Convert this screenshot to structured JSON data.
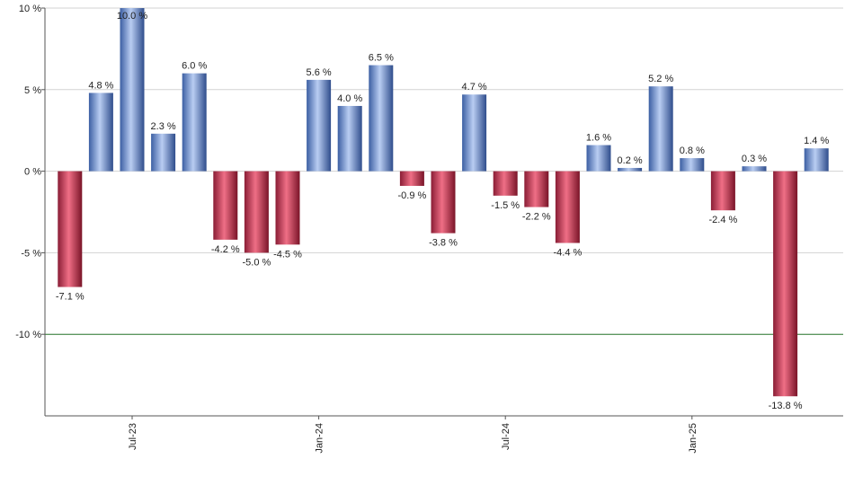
{
  "chart_data": {
    "type": "bar",
    "title": "",
    "xlabel": "",
    "ylabel": "",
    "ylim": [
      -15,
      10
    ],
    "y_ticks": [
      10,
      5,
      0,
      -5,
      -10
    ],
    "y_tick_labels": [
      "10 %",
      "5 %",
      "0 %",
      "-5 %",
      "-10 %"
    ],
    "grid": true,
    "reference_line": {
      "value": -10,
      "color": "#2e7d32"
    },
    "colors": {
      "positive": "#6f93d6",
      "negative": "#c8334f"
    },
    "x_ticks": [
      {
        "label": "Jul-23",
        "index": 2
      },
      {
        "label": "Jan-24",
        "index": 8
      },
      {
        "label": "Jul-24",
        "index": 14
      },
      {
        "label": "Jan-25",
        "index": 20
      }
    ],
    "values": [
      -7.1,
      4.8,
      10.0,
      2.3,
      6.0,
      -4.2,
      -5.0,
      -4.5,
      5.6,
      4.0,
      6.5,
      -0.9,
      -3.8,
      4.7,
      -1.5,
      -2.2,
      -4.4,
      1.6,
      0.2,
      5.2,
      0.8,
      -2.4,
      0.3,
      -13.8,
      1.4
    ],
    "value_labels": [
      "-7.1 %",
      "4.8 %",
      "10.0 %",
      "2.3 %",
      "6.0 %",
      "-4.2 %",
      "-5.0 %",
      "-4.5 %",
      "5.6 %",
      "4.0 %",
      "6.5 %",
      "-0.9 %",
      "-3.8 %",
      "4.7 %",
      "-1.5 %",
      "-2.2 %",
      "-4.4 %",
      "1.6 %",
      "0.2 %",
      "5.2 %",
      "0.8 %",
      "-2.4 %",
      "0.3 %",
      "-13.8 %",
      "1.4 %"
    ]
  }
}
